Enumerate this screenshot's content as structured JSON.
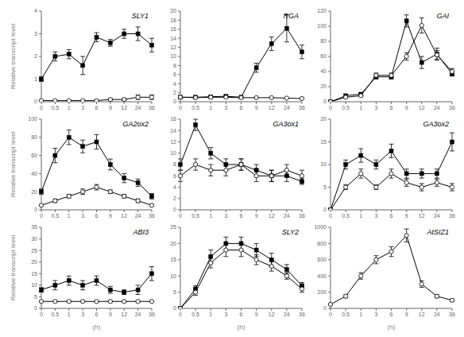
{
  "chart_data": [
    {
      "type": "line",
      "title": "SLY1",
      "ylabel": "Relative transcript level",
      "categories": [
        "0",
        "0.5",
        "1",
        "3",
        "6",
        "9",
        "12",
        "24",
        "36"
      ],
      "ylim": [
        0,
        4
      ],
      "yticks": [
        0,
        1,
        2,
        3,
        4
      ],
      "series": [
        {
          "color": "#000000",
          "marker": "square",
          "values": [
            1.0,
            2.0,
            2.1,
            1.6,
            2.85,
            2.6,
            3.0,
            3.0,
            2.5
          ],
          "error": [
            0.1,
            0.2,
            0.2,
            0.4,
            0.2,
            0.15,
            0.2,
            0.3,
            0.3
          ]
        },
        {
          "color": "#000000",
          "marker": "circle",
          "values": [
            0.05,
            0.05,
            0.05,
            0.05,
            0.05,
            0.1,
            0.1,
            0.2,
            0.2
          ],
          "error": [
            0.02,
            0.02,
            0.02,
            0.02,
            0.02,
            0.05,
            0.05,
            0.1,
            0.1
          ]
        }
      ]
    },
    {
      "type": "line",
      "title": "RGA",
      "categories": [
        "0",
        "0.5",
        "1",
        "3",
        "6",
        "9",
        "12",
        "24",
        "36"
      ],
      "ylim": [
        0,
        20
      ],
      "yticks": [
        0,
        2,
        4,
        6,
        8,
        10,
        12,
        14,
        16,
        18,
        20
      ],
      "series": [
        {
          "color": "#000000",
          "marker": "square",
          "values": [
            1.0,
            1.0,
            1.1,
            1.2,
            1.0,
            7.5,
            12.8,
            16.2,
            11.0
          ],
          "error": [
            0.1,
            0.1,
            0.1,
            0.1,
            0.1,
            1.0,
            1.5,
            3.0,
            1.5
          ]
        },
        {
          "color": "#000000",
          "marker": "circle",
          "values": [
            1.0,
            0.9,
            1.0,
            1.0,
            0.9,
            0.9,
            0.9,
            0.8,
            0.7
          ],
          "error": [
            0.05,
            0.05,
            0.05,
            0.05,
            0.05,
            0.05,
            0.05,
            0.05,
            0.05
          ]
        }
      ]
    },
    {
      "type": "line",
      "title": "GAI",
      "categories": [
        "0",
        "0.5",
        "1",
        "3",
        "6",
        "9",
        "12",
        "24",
        "36"
      ],
      "ylim": [
        0,
        120
      ],
      "yticks": [
        0,
        20,
        40,
        60,
        80,
        100,
        120
      ],
      "series": [
        {
          "color": "#000000",
          "marker": "square",
          "values": [
            0,
            8,
            10,
            33,
            33,
            107,
            52,
            63,
            37
          ],
          "error": [
            0,
            2,
            2,
            3,
            3,
            8,
            8,
            8,
            3
          ]
        },
        {
          "color": "#000000",
          "marker": "circle",
          "values": [
            0,
            6,
            8,
            35,
            35,
            60,
            101,
            62,
            40
          ],
          "error": [
            0,
            1,
            1,
            3,
            3,
            5,
            10,
            6,
            4
          ]
        }
      ]
    },
    {
      "type": "line",
      "title": "GA2ox2",
      "ylabel": "Relative transcript level",
      "categories": [
        "0",
        "0.5",
        "1",
        "3",
        "6",
        "9",
        "12",
        "24",
        "36"
      ],
      "ylim": [
        0,
        100
      ],
      "yticks": [
        0,
        20,
        40,
        60,
        80,
        100
      ],
      "series": [
        {
          "color": "#000000",
          "marker": "square",
          "values": [
            20,
            60,
            80,
            70,
            75,
            50,
            35,
            30,
            15
          ],
          "error": [
            3,
            8,
            8,
            7,
            8,
            6,
            5,
            4,
            3
          ]
        },
        {
          "color": "#000000",
          "marker": "circle",
          "values": [
            5,
            10,
            15,
            20,
            25,
            20,
            15,
            10,
            5
          ],
          "error": [
            1,
            2,
            2,
            3,
            3,
            2,
            2,
            2,
            1
          ]
        }
      ]
    },
    {
      "type": "line",
      "title": "GA3ox1",
      "categories": [
        "0",
        "0.5",
        "1",
        "3",
        "6",
        "9",
        "12",
        "24",
        "36"
      ],
      "ylim": [
        0,
        16
      ],
      "yticks": [
        0,
        2,
        4,
        6,
        8,
        10,
        12,
        14,
        16
      ],
      "series": [
        {
          "color": "#000000",
          "marker": "square",
          "values": [
            8,
            15,
            10,
            8,
            8,
            7,
            6,
            6,
            5
          ],
          "error": [
            1,
            1,
            1,
            1,
            1,
            1,
            1,
            1,
            0.5
          ]
        },
        {
          "color": "#000000",
          "marker": "circle",
          "values": [
            6,
            8,
            7,
            7,
            8,
            6,
            6,
            7,
            6
          ],
          "error": [
            1,
            1,
            1,
            1,
            1,
            1,
            1,
            1,
            1
          ]
        }
      ]
    },
    {
      "type": "line",
      "title": "GA3ox2",
      "categories": [
        "0",
        "0.5",
        "1",
        "3",
        "6",
        "9",
        "12",
        "24",
        "36"
      ],
      "ylim": [
        0,
        20
      ],
      "yticks": [
        0,
        5,
        10,
        15,
        20
      ],
      "series": [
        {
          "color": "#000000",
          "marker": "square",
          "values": [
            0,
            10,
            12,
            10,
            13,
            8,
            8,
            8,
            15
          ],
          "error": [
            0,
            1,
            1.5,
            1,
            1.5,
            1,
            1,
            1,
            2
          ]
        },
        {
          "color": "#000000",
          "marker": "circle",
          "values": [
            0,
            5,
            8,
            5,
            8,
            6,
            5,
            6,
            5
          ],
          "error": [
            0,
            0.5,
            1,
            0.5,
            1,
            0.8,
            0.8,
            0.8,
            0.8
          ]
        }
      ]
    },
    {
      "type": "line",
      "title": "ABI3",
      "ylabel": "Relative transcript level",
      "xlabel": "(h)",
      "categories": [
        "0",
        "0.5",
        "1",
        "3",
        "6",
        "9",
        "12",
        "24",
        "36"
      ],
      "ylim": [
        0,
        35
      ],
      "yticks": [
        0,
        5,
        10,
        15,
        20,
        25,
        30,
        35
      ],
      "series": [
        {
          "color": "#000000",
          "marker": "square",
          "values": [
            8,
            10,
            12,
            10,
            12,
            8,
            7,
            8,
            15
          ],
          "error": [
            1,
            2,
            2,
            2,
            2,
            1.5,
            1,
            2,
            3
          ]
        },
        {
          "color": "#000000",
          "marker": "circle",
          "values": [
            3,
            3,
            3,
            3,
            3,
            3,
            3,
            3,
            3
          ],
          "error": [
            0.3,
            0.3,
            0.3,
            0.3,
            0.3,
            0.3,
            0.3,
            0.3,
            0.3
          ]
        }
      ]
    },
    {
      "type": "line",
      "title": "SLY2",
      "xlabel": "(h)",
      "categories": [
        "0",
        "0.5",
        "1",
        "3",
        "6",
        "9",
        "12",
        "24",
        "36"
      ],
      "ylim": [
        0,
        25
      ],
      "yticks": [
        0,
        5,
        10,
        15,
        20,
        25
      ],
      "series": [
        {
          "color": "#000000",
          "marker": "square",
          "values": [
            0,
            6,
            16,
            20,
            20,
            18,
            15,
            12,
            7
          ],
          "error": [
            0,
            1,
            2,
            2,
            2,
            2,
            2,
            1.5,
            1
          ]
        },
        {
          "color": "#000000",
          "marker": "circle",
          "values": [
            0,
            5,
            14,
            18,
            18,
            15,
            13,
            10,
            6
          ],
          "error": [
            0,
            1,
            1.5,
            2,
            2,
            1.5,
            1.5,
            1,
            1
          ]
        }
      ]
    },
    {
      "type": "line",
      "title": "AtSIZ1",
      "xlabel": "(h)",
      "categories": [
        "0",
        "0.5",
        "1",
        "3",
        "6",
        "9",
        "12",
        "24",
        "36"
      ],
      "ylim": [
        0,
        1000
      ],
      "yticks": [
        0,
        200,
        400,
        600,
        800,
        1000
      ],
      "series": [
        {
          "color": "#000000",
          "marker": "circle",
          "values": [
            50,
            150,
            400,
            600,
            700,
            900,
            300,
            150,
            100
          ],
          "error": [
            10,
            20,
            40,
            50,
            60,
            80,
            40,
            20,
            15
          ]
        }
      ]
    }
  ]
}
